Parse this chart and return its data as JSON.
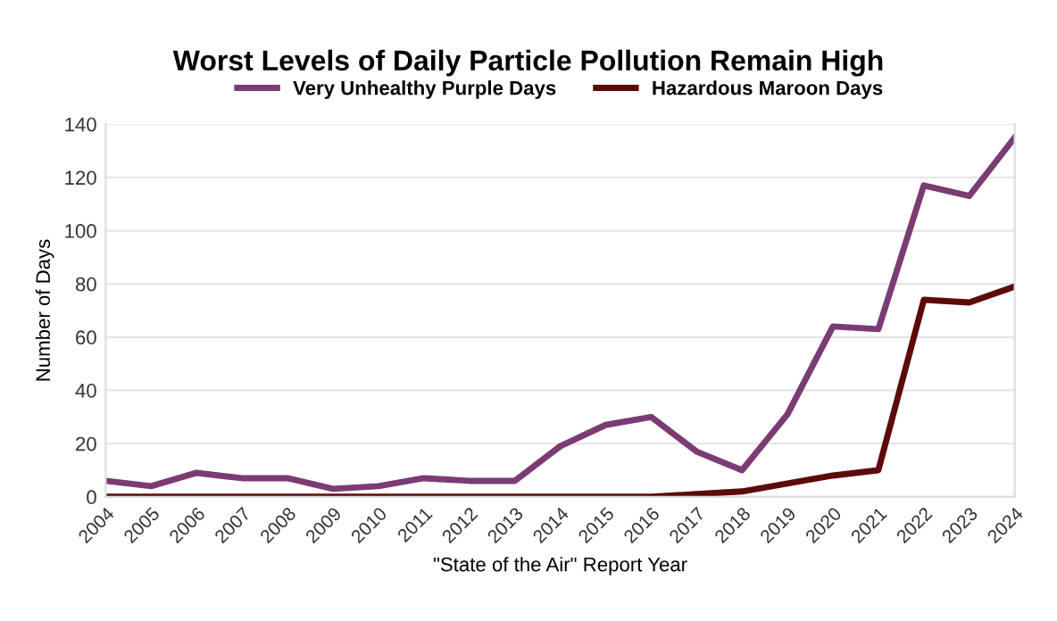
{
  "chart_data": {
    "type": "line",
    "title": "Worst Levels of Daily Particle Pollution Remain High",
    "xlabel": "\"State of the Air\" Report Year",
    "ylabel": "Number of Days",
    "categories": [
      "2004",
      "2005",
      "2006",
      "2007",
      "2008",
      "2009",
      "2010",
      "2011",
      "2012",
      "2013",
      "2014",
      "2015",
      "2016",
      "2017",
      "2018",
      "2019",
      "2020",
      "2021",
      "2022",
      "2023",
      "2024"
    ],
    "series": [
      {
        "name": "Very Unhealthy Purple Days",
        "color": "#7b3b73",
        "values": [
          6,
          4,
          9,
          7,
          7,
          3,
          4,
          7,
          6,
          6,
          19,
          27,
          30,
          17,
          10,
          31,
          64,
          63,
          117,
          113,
          135
        ]
      },
      {
        "name": "Hazardous Maroon Days",
        "color": "#5c0a0a",
        "values": [
          0,
          0,
          0,
          0,
          0,
          0,
          0,
          0,
          0,
          0,
          0,
          0,
          0,
          1,
          2,
          5,
          8,
          10,
          74,
          73,
          79
        ]
      }
    ],
    "ylim": [
      0,
      140
    ],
    "yticks": [
      0,
      20,
      40,
      60,
      80,
      100,
      120,
      140
    ],
    "grid": "y",
    "legend": "top",
    "marker": "none",
    "line_style": "solid"
  }
}
